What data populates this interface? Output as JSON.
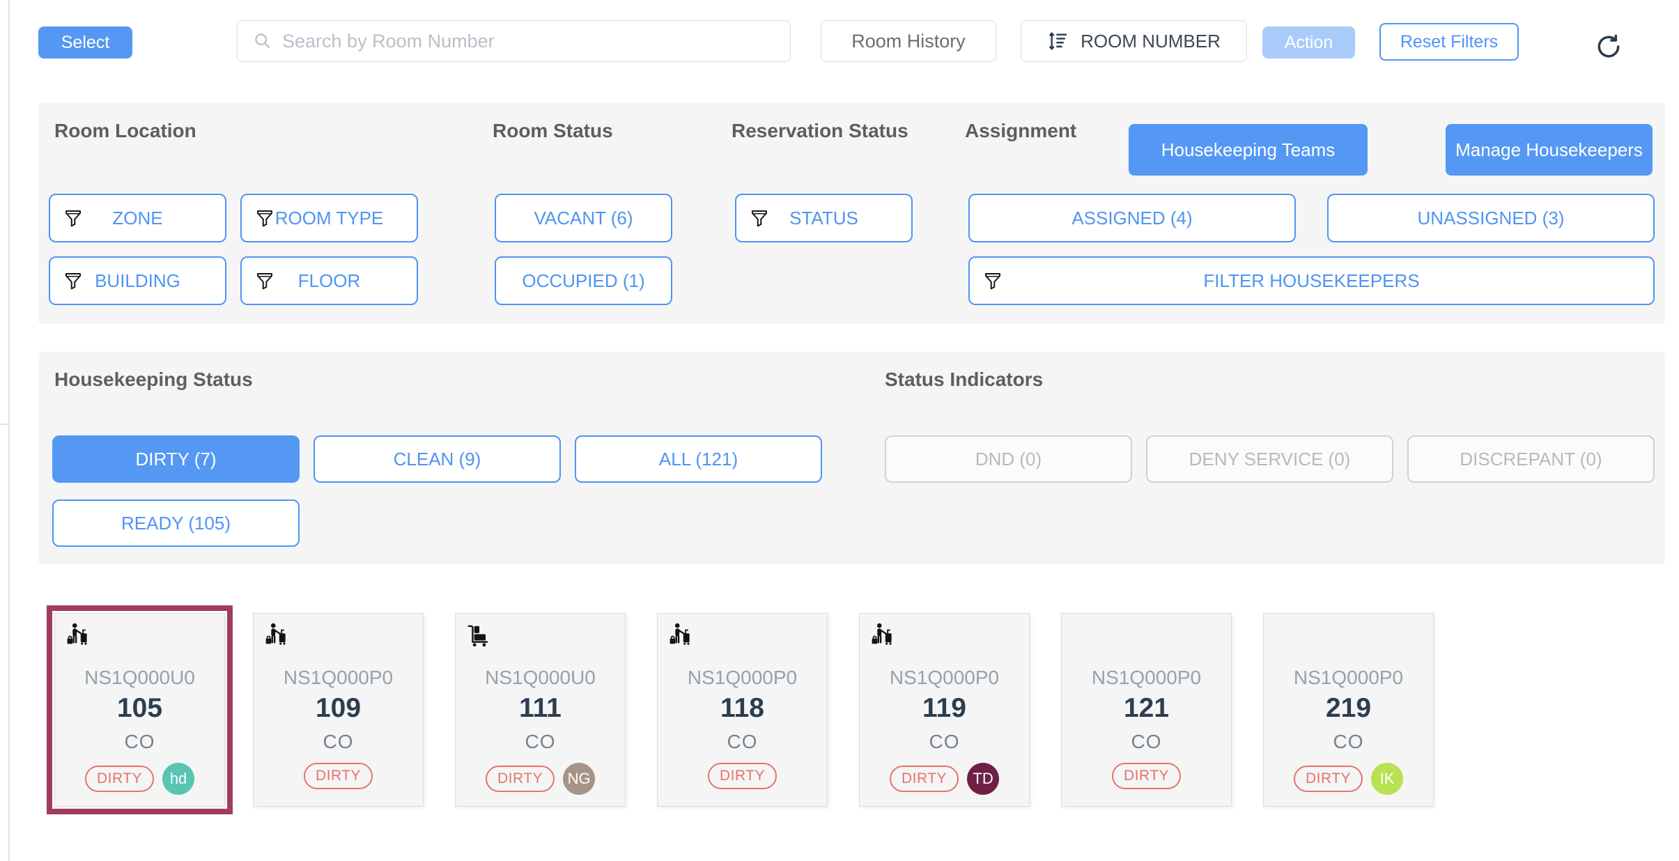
{
  "toolbar": {
    "select_label": "Select",
    "search": {
      "placeholder": "Search by Room Number",
      "value": "",
      "icon": "search-icon"
    },
    "room_history_label": "Room History",
    "sort": {
      "label": "ROOM NUMBER",
      "icon": "sort-icon"
    },
    "action_label": "Action",
    "reset_filters_label": "Reset Filters",
    "refresh_icon": "refresh-icon"
  },
  "filters_panel": {
    "room_location": {
      "title": "Room Location"
    },
    "room_status": {
      "title": "Room Status"
    },
    "reservation_status": {
      "title": "Reservation Status"
    },
    "assignment": {
      "title": "Assignment"
    },
    "housekeeping_teams_label": "Housekeeping Teams",
    "manage_housekeepers_label": "Manage Housekeepers",
    "zone": {
      "label": "ZONE",
      "icon": "funnel-icon"
    },
    "room_type": {
      "label": "ROOM TYPE",
      "icon": "funnel-icon"
    },
    "building": {
      "label": "BUILDING",
      "icon": "funnel-icon"
    },
    "floor": {
      "label": "FLOOR",
      "icon": "funnel-icon"
    },
    "vacant": {
      "label": "VACANT (6)"
    },
    "occupied": {
      "label": "OCCUPIED (1)"
    },
    "status": {
      "label": "STATUS",
      "icon": "funnel-icon"
    },
    "assigned": {
      "label": "ASSIGNED (4)"
    },
    "unassigned": {
      "label": "UNASSIGNED (3)"
    },
    "filter_housekeepers": {
      "label": "FILTER HOUSEKEEPERS",
      "icon": "funnel-icon"
    }
  },
  "status_panel": {
    "housekeeping_status": {
      "title": "Housekeeping Status",
      "dirty": {
        "label": "DIRTY (7)",
        "active": true
      },
      "clean": {
        "label": "CLEAN (9)",
        "active": false
      },
      "all": {
        "label": "ALL (121)",
        "active": false
      },
      "ready": {
        "label": "READY (105)",
        "active": false
      }
    },
    "status_indicators": {
      "title": "Status Indicators",
      "dnd": {
        "label": "DND (0)",
        "disabled": true
      },
      "deny_service": {
        "label": "DENY SERVICE (0)",
        "disabled": true
      },
      "discrepant": {
        "label": "DISCREPANT (0)",
        "disabled": true
      }
    }
  },
  "rooms": [
    {
      "code": "NS1Q000U0",
      "number": "105",
      "reservation_status": "CO",
      "status_badge": "DIRTY",
      "icon": "guest-departure-icon",
      "selected": true,
      "housekeeper": {
        "initials": "hd",
        "color": "#57c5b1"
      }
    },
    {
      "code": "NS1Q000P0",
      "number": "109",
      "reservation_status": "CO",
      "status_badge": "DIRTY",
      "icon": "guest-departure-icon",
      "selected": false,
      "housekeeper": null
    },
    {
      "code": "NS1Q000U0",
      "number": "111",
      "reservation_status": "CO",
      "status_badge": "DIRTY",
      "icon": "luggage-cart-icon",
      "selected": false,
      "housekeeper": {
        "initials": "NG",
        "color": "#a79486"
      }
    },
    {
      "code": "NS1Q000P0",
      "number": "118",
      "reservation_status": "CO",
      "status_badge": "DIRTY",
      "icon": "guest-departure-icon",
      "selected": false,
      "housekeeper": null
    },
    {
      "code": "NS1Q000P0",
      "number": "119",
      "reservation_status": "CO",
      "status_badge": "DIRTY",
      "icon": "guest-departure-icon",
      "selected": false,
      "housekeeper": {
        "initials": "TD",
        "color": "#6e2045"
      }
    },
    {
      "code": "NS1Q000P0",
      "number": "121",
      "reservation_status": "CO",
      "status_badge": "DIRTY",
      "icon": null,
      "selected": false,
      "housekeeper": null
    },
    {
      "code": "NS1Q000P0",
      "number": "219",
      "reservation_status": "CO",
      "status_badge": "DIRTY",
      "icon": null,
      "selected": false,
      "housekeeper": {
        "initials": "IK",
        "color": "#b7e253"
      }
    }
  ],
  "colors": {
    "accent_blue": "#5598f4",
    "accent_blue_disabled": "#a9cbf9",
    "selected_card_border": "#a23c5f",
    "dirty_badge": "#e4736c",
    "panel_bg": "#f5f5f5"
  }
}
